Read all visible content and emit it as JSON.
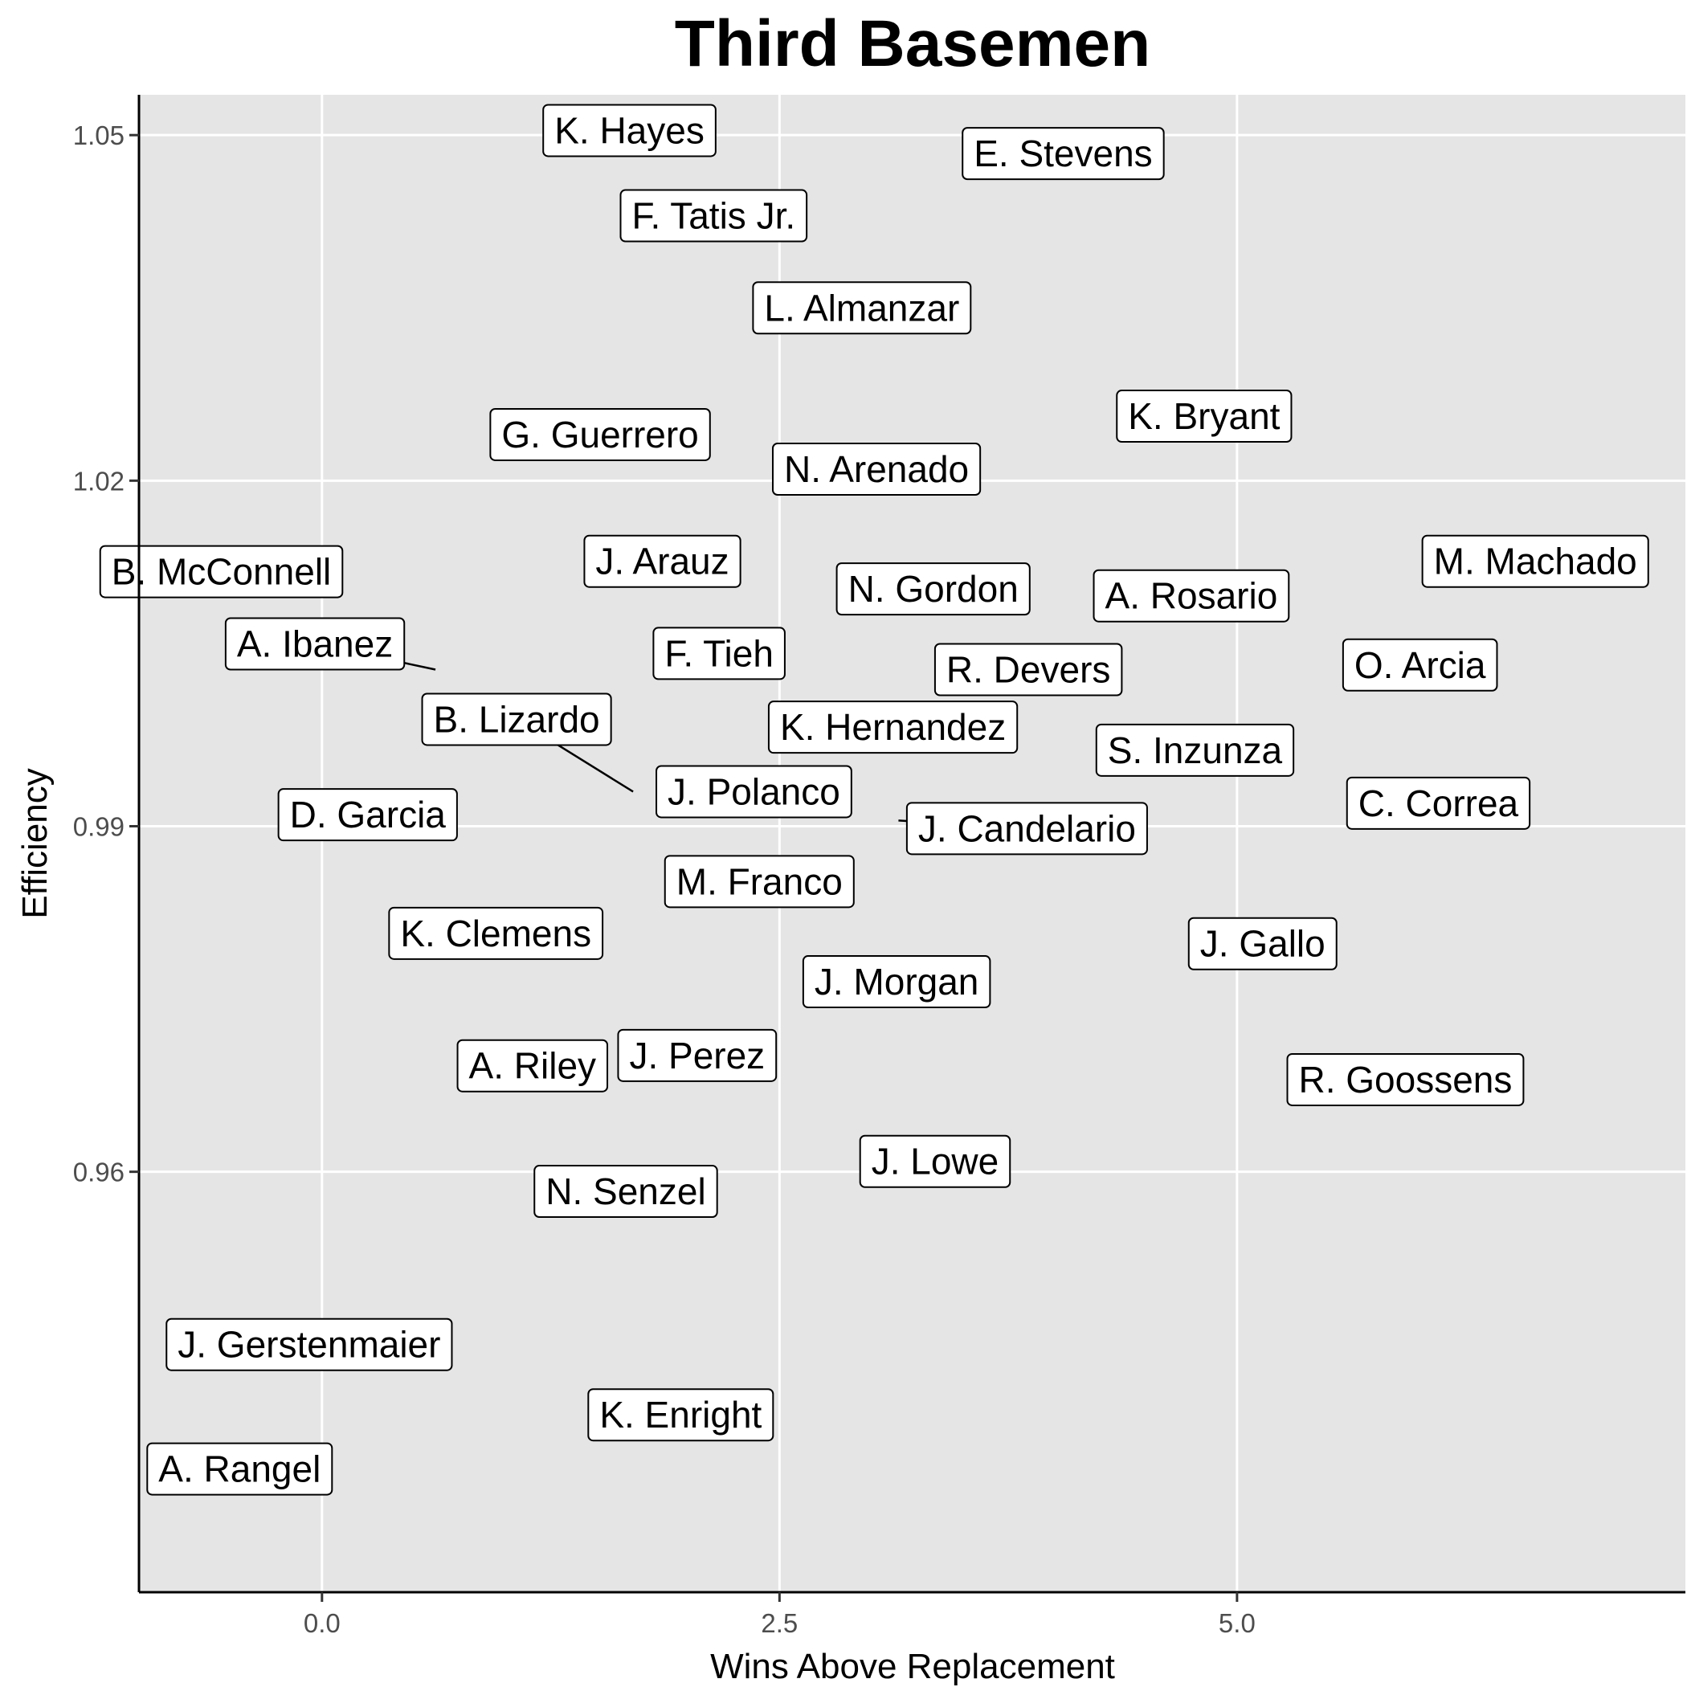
{
  "chart_data": {
    "type": "scatter",
    "title": "Third Basemen",
    "xlabel": "Wins Above Replacement",
    "ylabel": "Efficiency",
    "xlim": [
      -1.0,
      7.45
    ],
    "ylim": [
      0.9235,
      1.0535
    ],
    "x_ticks": [
      {
        "value": 0.0,
        "label": "0.0"
      },
      {
        "value": 2.5,
        "label": "2.5"
      },
      {
        "value": 5.0,
        "label": "5.0"
      }
    ],
    "y_ticks": [
      {
        "value": 0.96,
        "label": "0.96"
      },
      {
        "value": 0.99,
        "label": "0.99"
      },
      {
        "value": 1.02,
        "label": "1.02"
      },
      {
        "value": 1.05,
        "label": "1.05"
      }
    ],
    "grid": true,
    "panel_color": "#e5e5e5",
    "points": [
      {
        "label": "K. Hayes",
        "x": 1.68,
        "y": 1.0504
      },
      {
        "label": "E. Stevens",
        "x": 4.05,
        "y": 1.0484
      },
      {
        "label": "F. Tatis Jr.",
        "x": 2.14,
        "y": 1.043
      },
      {
        "label": "L. Almanzar",
        "x": 2.95,
        "y": 1.035
      },
      {
        "label": "K. Bryant",
        "x": 4.82,
        "y": 1.0256
      },
      {
        "label": "G. Guerrero",
        "x": 1.52,
        "y": 1.024
      },
      {
        "label": "N. Arenado",
        "x": 3.03,
        "y": 1.021
      },
      {
        "label": "B. McConnell",
        "x": -0.55,
        "y": 1.0121
      },
      {
        "label": "J. Arauz",
        "x": 1.86,
        "y": 1.013
      },
      {
        "label": "M. Machado",
        "x": 6.63,
        "y": 1.013
      },
      {
        "label": "N. Gordon",
        "x": 3.34,
        "y": 1.0106
      },
      {
        "label": "A. Rosario",
        "x": 4.75,
        "y": 1.01
      },
      {
        "label": "A. Ibanez",
        "x": 0.62,
        "y": 1.0036
      },
      {
        "label": "F. Tieh",
        "x": 2.17,
        "y": 1.005
      },
      {
        "label": "O. Arcia",
        "x": 6.0,
        "y": 1.004
      },
      {
        "label": "R. Devers",
        "x": 3.86,
        "y": 1.0036
      },
      {
        "label": "B. Lizardo",
        "x": 1.7,
        "y": 0.993
      },
      {
        "label": "K. Hernandez",
        "x": 3.12,
        "y": 0.9986
      },
      {
        "label": "S. Inzunza",
        "x": 4.77,
        "y": 0.9966
      },
      {
        "label": "J. Polanco",
        "x": 2.36,
        "y": 0.993
      },
      {
        "label": "C. Correa",
        "x": 6.1,
        "y": 0.992
      },
      {
        "label": "D. Garcia",
        "x": 0.25,
        "y": 0.991
      },
      {
        "label": "J. Candelario",
        "x": 3.15,
        "y": 0.9905
      },
      {
        "label": "M. Franco",
        "x": 2.39,
        "y": 0.9852
      },
      {
        "label": "K. Clemens",
        "x": 0.95,
        "y": 0.9807
      },
      {
        "label": "J. Gallo",
        "x": 5.14,
        "y": 0.9798
      },
      {
        "label": "J. Morgan",
        "x": 3.14,
        "y": 0.9765
      },
      {
        "label": "J. Perez",
        "x": 2.05,
        "y": 0.9701
      },
      {
        "label": "A. Riley",
        "x": 1.15,
        "y": 0.9692
      },
      {
        "label": "R. Goossens",
        "x": 5.92,
        "y": 0.968
      },
      {
        "label": "J. Lowe",
        "x": 3.35,
        "y": 0.9609
      },
      {
        "label": "N. Senzel",
        "x": 1.66,
        "y": 0.9583
      },
      {
        "label": "J. Gerstenmaier",
        "x": -0.07,
        "y": 0.945
      },
      {
        "label": "K. Enright",
        "x": 1.96,
        "y": 0.9389
      },
      {
        "label": "A. Rangel",
        "x": -0.45,
        "y": 0.9342
      }
    ]
  }
}
